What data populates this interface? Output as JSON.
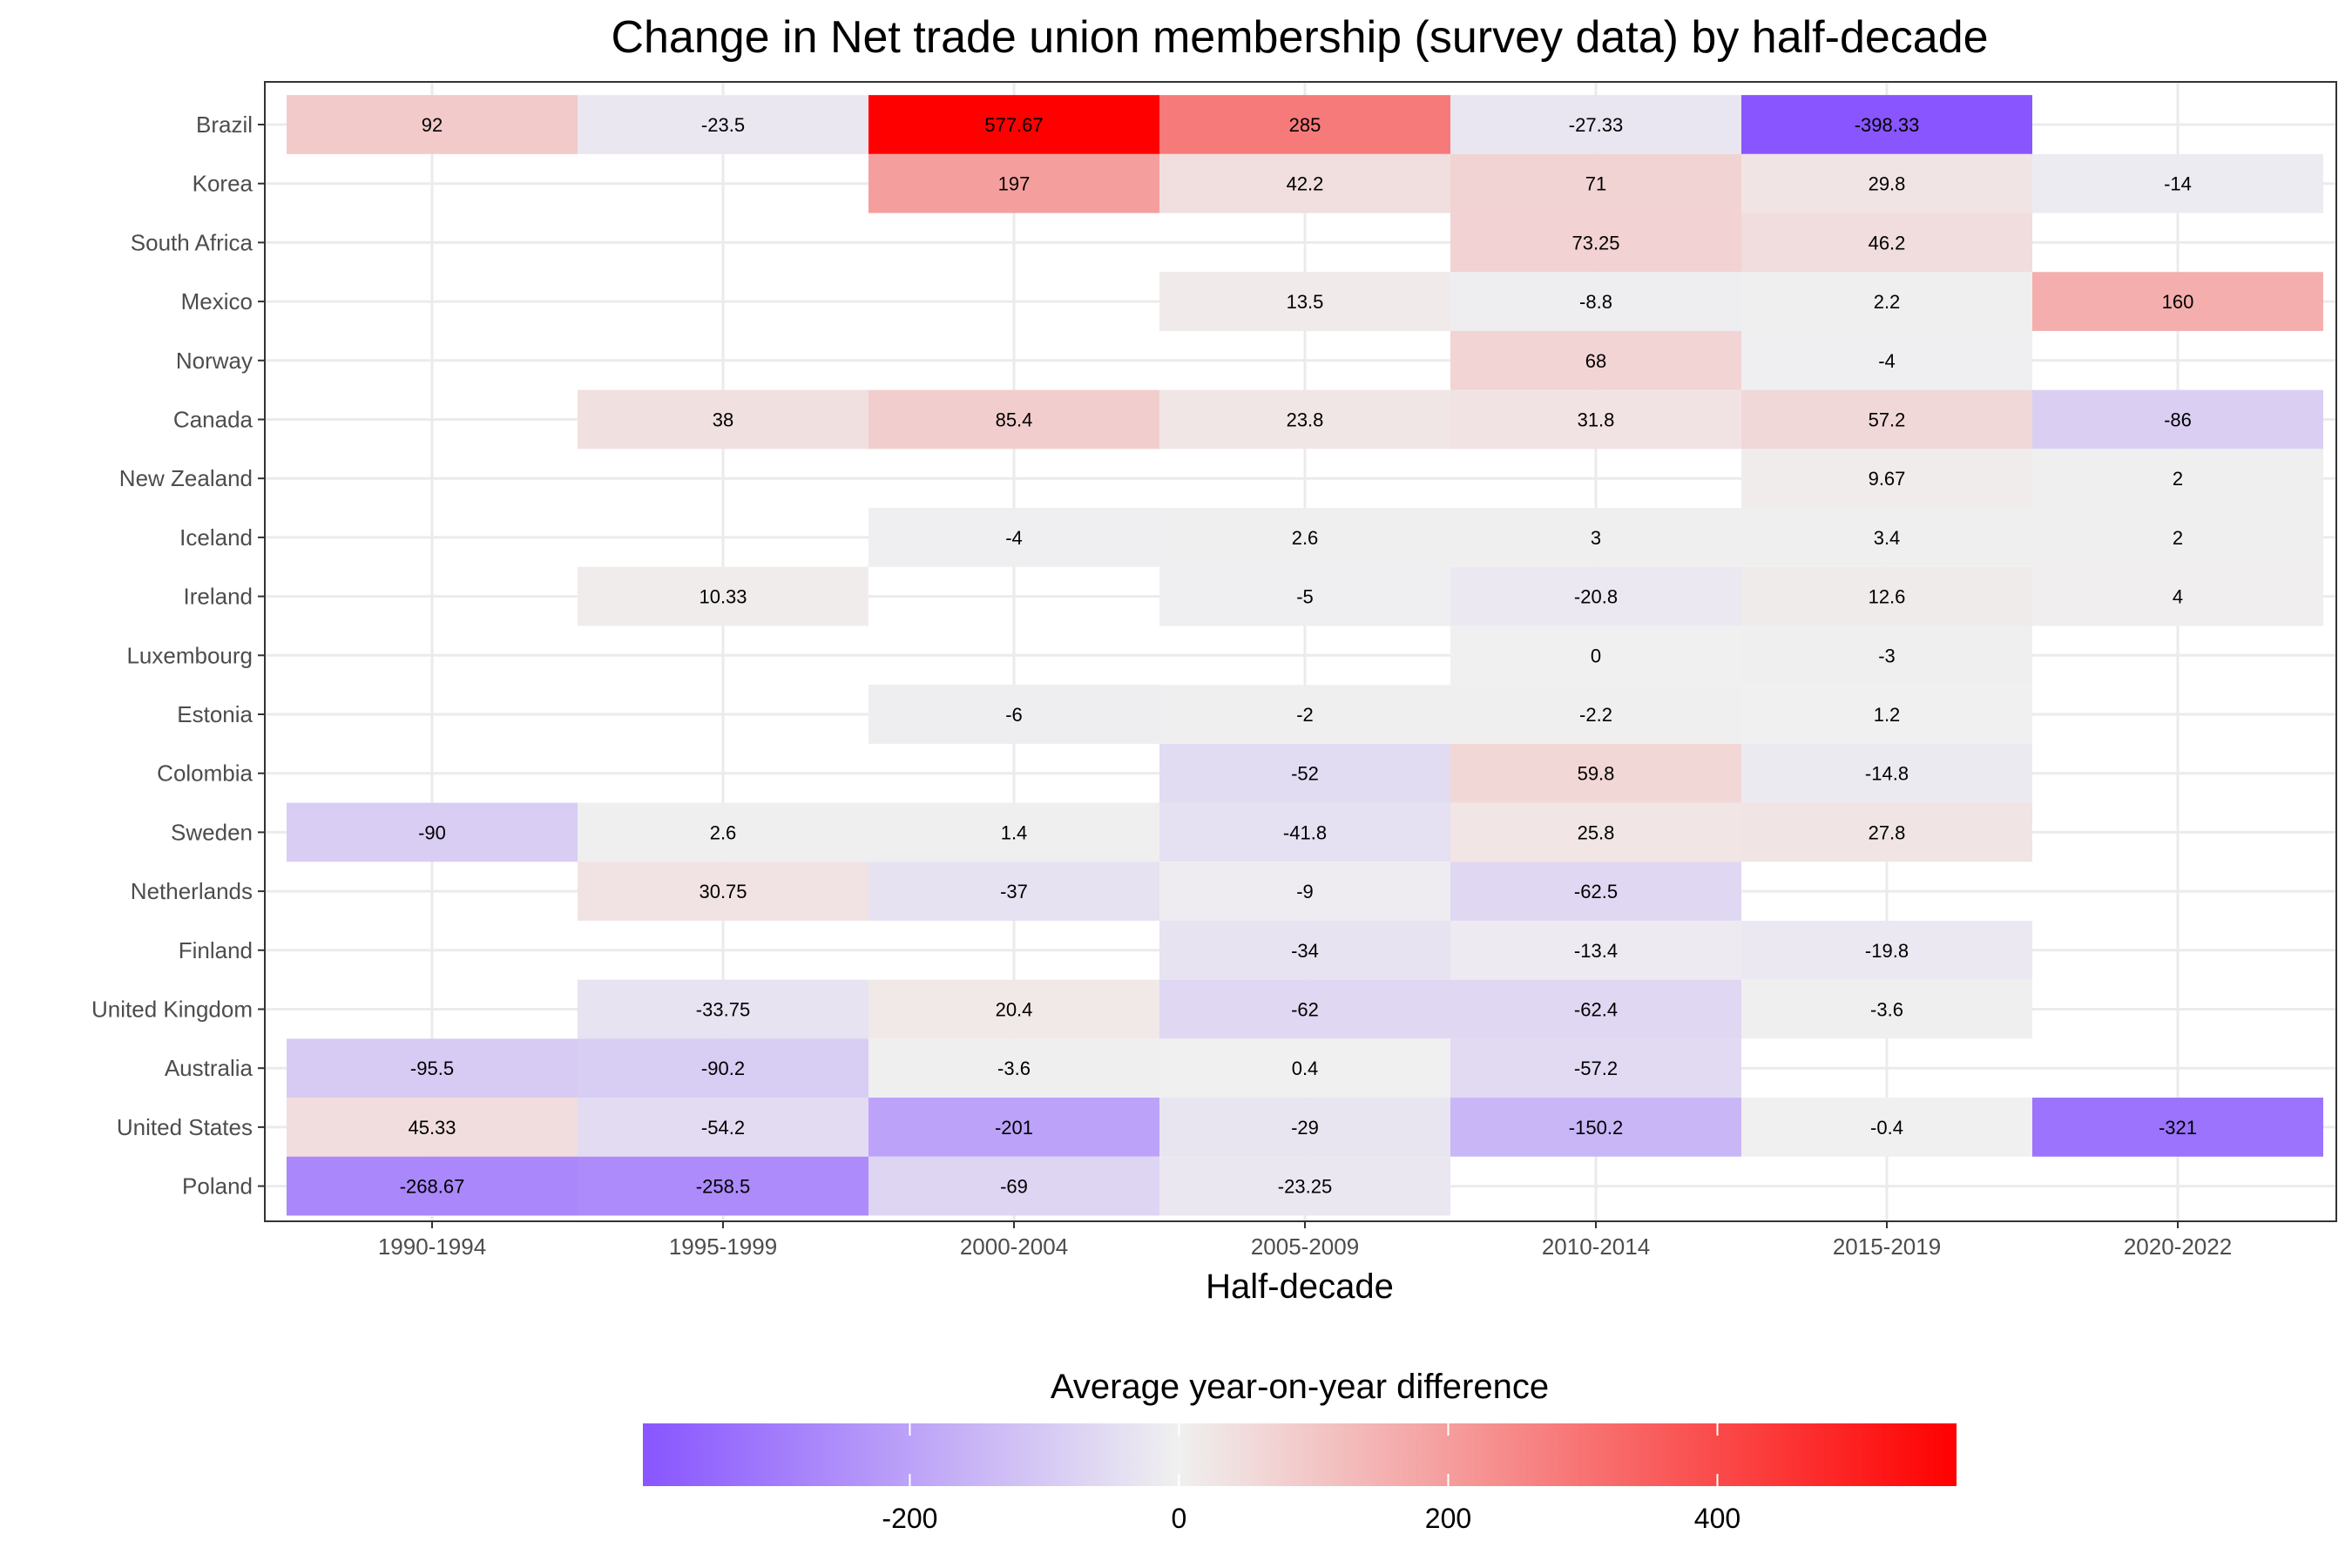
{
  "chart_data": {
    "type": "heatmap",
    "title": "Change in Net trade union membership (survey data) by half-decade",
    "xlabel": "Half-decade",
    "ylabel": "",
    "x": [
      "1990-1994",
      "1995-1999",
      "2000-2004",
      "2005-2009",
      "2010-2014",
      "2015-2019",
      "2020-2022"
    ],
    "y": [
      "Brazil",
      "Korea",
      "South Africa",
      "Mexico",
      "Norway",
      "Canada",
      "New Zealand",
      "Iceland",
      "Ireland",
      "Luxembourg",
      "Estonia",
      "Colombia",
      "Sweden",
      "Netherlands",
      "Finland",
      "United Kingdom",
      "Australia",
      "United States",
      "Poland"
    ],
    "values": [
      [
        "92",
        "-23.5",
        "577.67",
        "285",
        "-27.33",
        "-398.33",
        null
      ],
      [
        null,
        null,
        "197",
        "42.2",
        "71",
        "29.8",
        "-14"
      ],
      [
        null,
        null,
        null,
        null,
        "73.25",
        "46.2",
        null
      ],
      [
        null,
        null,
        null,
        "13.5",
        "-8.8",
        "2.2",
        "160"
      ],
      [
        null,
        null,
        null,
        null,
        "68",
        "-4",
        null
      ],
      [
        null,
        "38",
        "85.4",
        "23.8",
        "31.8",
        "57.2",
        "-86"
      ],
      [
        null,
        null,
        null,
        null,
        null,
        "9.67",
        "2"
      ],
      [
        null,
        null,
        "-4",
        "2.6",
        "3",
        "3.4",
        "2"
      ],
      [
        null,
        "10.33",
        null,
        "-5",
        "-20.8",
        "12.6",
        "4"
      ],
      [
        null,
        null,
        null,
        null,
        "0",
        "-3",
        null
      ],
      [
        null,
        null,
        "-6",
        "-2",
        "-2.2",
        "1.2",
        null
      ],
      [
        null,
        null,
        null,
        "-52",
        "59.8",
        "-14.8",
        null
      ],
      [
        "-90",
        "2.6",
        "1.4",
        "-41.8",
        "25.8",
        "27.8",
        null
      ],
      [
        null,
        "30.75",
        "-37",
        "-9",
        "-62.5",
        null,
        null
      ],
      [
        null,
        null,
        null,
        "-34",
        "-13.4",
        "-19.8",
        null
      ],
      [
        null,
        "-33.75",
        "20.4",
        "-62",
        "-62.4",
        "-3.6",
        null
      ],
      [
        "-95.5",
        "-90.2",
        "-3.6",
        "0.4",
        "-57.2",
        null,
        null
      ],
      [
        "45.33",
        "-54.2",
        "-201",
        "-29",
        "-150.2",
        "-0.4",
        "-321"
      ],
      [
        "-268.67",
        "-258.5",
        "-69",
        "-23.25",
        null,
        null,
        null
      ]
    ],
    "legend": {
      "title": "Average year-on-year difference",
      "position": "bottom",
      "range": [
        -398.33,
        577.67
      ],
      "ticks": [
        -200,
        0,
        200,
        400
      ],
      "tick_labels": [
        "-200",
        "0",
        "200",
        "400"
      ]
    },
    "colors": {
      "low": "#8855FF",
      "mid": "#F0F0F0",
      "high": "#FF0000",
      "grid": "#EBEBEB",
      "panel_border": "#333333"
    },
    "grid": true
  }
}
